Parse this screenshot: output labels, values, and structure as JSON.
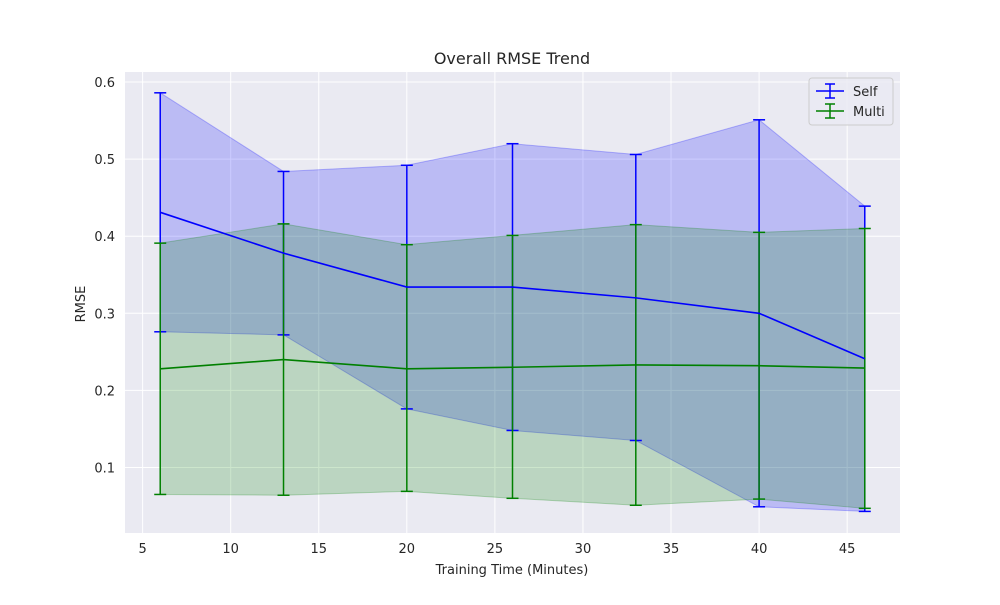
{
  "chart_data": {
    "type": "line",
    "title": "Overall RMSE Trend",
    "xlabel": "Training Time (Minutes)",
    "ylabel": "RMSE",
    "xlim": [
      4.0,
      48.0
    ],
    "ylim": [
      0.015,
      0.613
    ],
    "xticks": [
      5,
      10,
      15,
      20,
      25,
      30,
      35,
      40,
      45
    ],
    "yticks": [
      0.1,
      0.2,
      0.3,
      0.4,
      0.5,
      0.6
    ],
    "grid": true,
    "legend_position": "top-right",
    "x": [
      6,
      13,
      20,
      26,
      33,
      40,
      46
    ],
    "series": [
      {
        "name": "Self",
        "color": "#0000ff",
        "band_color": "#0000ff",
        "mean": [
          0.431,
          0.378,
          0.334,
          0.334,
          0.32,
          0.3,
          0.241
        ],
        "upper": [
          0.586,
          0.484,
          0.492,
          0.52,
          0.506,
          0.551,
          0.439
        ],
        "lower": [
          0.276,
          0.272,
          0.176,
          0.148,
          0.135,
          0.049,
          0.043
        ]
      },
      {
        "name": "Multi",
        "color": "#008000",
        "band_color": "#008000",
        "mean": [
          0.228,
          0.24,
          0.228,
          0.23,
          0.233,
          0.232,
          0.229
        ],
        "upper": [
          0.391,
          0.416,
          0.389,
          0.401,
          0.415,
          0.405,
          0.41
        ],
        "lower": [
          0.065,
          0.064,
          0.069,
          0.06,
          0.051,
          0.059,
          0.047
        ]
      }
    ]
  }
}
